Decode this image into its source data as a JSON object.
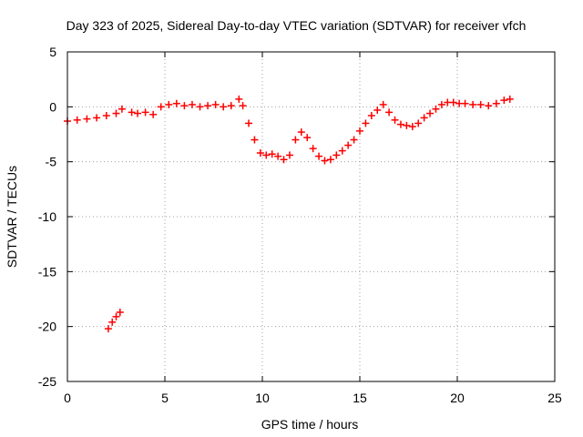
{
  "chart_data": {
    "type": "scatter",
    "title": "Day 323 of 2025, Sidereal Day-to-day VTEC variation (SDTVAR) for receiver vfch",
    "xlabel": "GPS time / hours",
    "ylabel": "SDTVAR / TECUs",
    "xlim": [
      0,
      25
    ],
    "ylim": [
      -25,
      5
    ],
    "xticks": [
      0,
      5,
      10,
      15,
      20,
      25
    ],
    "xtick_labels": [
      "0",
      "5",
      "10",
      "15",
      "20",
      "25"
    ],
    "yticks": [
      5,
      0,
      -5,
      -10,
      -15,
      -20,
      -25
    ],
    "ytick_labels": [
      "5",
      "0",
      "-5",
      "-10",
      "-15",
      "-20",
      "-25"
    ],
    "grid": true,
    "marker": "plus",
    "series_color": "#ff0000",
    "series": [
      {
        "name": "SDTVAR",
        "x": [
          0.0,
          0.5,
          1.0,
          1.5,
          2.0,
          2.5,
          2.8,
          3.3,
          3.6,
          4.0,
          4.4,
          4.8,
          5.2,
          5.6,
          6.0,
          6.4,
          6.8,
          7.2,
          7.6,
          8.0,
          8.4,
          8.8,
          9.0,
          9.3,
          9.6,
          9.9,
          10.2,
          10.5,
          10.8,
          11.1,
          11.4,
          11.7,
          12.0,
          12.3,
          12.6,
          12.9,
          13.2,
          13.5,
          13.8,
          14.1,
          14.4,
          14.7,
          15.0,
          15.3,
          15.6,
          15.9,
          16.2,
          16.5,
          16.8,
          17.1,
          17.4,
          17.7,
          18.0,
          18.3,
          18.6,
          18.9,
          19.2,
          19.5,
          19.8,
          20.1,
          20.4,
          20.8,
          21.2,
          21.6,
          22.0,
          22.4,
          22.7,
          2.1,
          2.3,
          2.5,
          2.7
        ],
        "y": [
          -1.3,
          -1.2,
          -1.1,
          -1.0,
          -0.8,
          -0.6,
          -0.2,
          -0.5,
          -0.6,
          -0.5,
          -0.7,
          0.0,
          0.2,
          0.3,
          0.1,
          0.2,
          0.0,
          0.1,
          0.2,
          0.0,
          0.1,
          0.7,
          0.1,
          -1.5,
          -3.0,
          -4.2,
          -4.4,
          -4.3,
          -4.5,
          -4.8,
          -4.4,
          -3.0,
          -2.3,
          -2.8,
          -3.8,
          -4.5,
          -4.9,
          -4.8,
          -4.4,
          -4.0,
          -3.5,
          -3.0,
          -2.2,
          -1.5,
          -0.8,
          -0.3,
          0.2,
          -0.5,
          -1.2,
          -1.6,
          -1.7,
          -1.8,
          -1.5,
          -1.0,
          -0.6,
          -0.2,
          0.2,
          0.4,
          0.4,
          0.3,
          0.3,
          0.2,
          0.2,
          0.1,
          0.3,
          0.6,
          0.7,
          -20.2,
          -19.6,
          -19.1,
          -18.7
        ]
      }
    ]
  }
}
